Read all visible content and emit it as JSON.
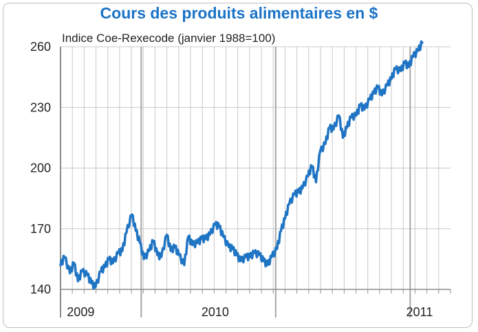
{
  "chart_data": {
    "type": "line",
    "title": "Cours des produits alimentaires en $",
    "subtitle": "Indice Coe-Rexecode (janvier 1988=100)",
    "xlabel": "",
    "ylabel": "",
    "ylim": [
      140,
      260
    ],
    "yticks": [
      140,
      170,
      200,
      230,
      260
    ],
    "xlim": [
      2008.4,
      2011.3
    ],
    "xticks": [
      {
        "label": "2009",
        "x": 2009.0
      },
      {
        "label": "2010",
        "x": 2010.0
      },
      {
        "label": "2011",
        "x": 2011.0
      }
    ],
    "grid": true,
    "colors": {
      "line": "#1f74c4",
      "title": "#1a73c7",
      "grid": "#c8c8c8"
    },
    "series": [
      {
        "name": "",
        "x": [
          2008.4,
          2008.43,
          2008.47,
          2008.5,
          2008.53,
          2008.56,
          2008.6,
          2008.63,
          2008.66,
          2008.7,
          2008.73,
          2008.76,
          2008.79,
          2008.83,
          2008.86,
          2008.89,
          2008.93,
          2008.96,
          2008.99,
          2009.02,
          2009.06,
          2009.09,
          2009.12,
          2009.15,
          2009.19,
          2009.22,
          2009.25,
          2009.28,
          2009.32,
          2009.35,
          2009.38,
          2009.42,
          2009.45,
          2009.48,
          2009.51,
          2009.55,
          2009.58,
          2009.61,
          2009.65,
          2009.68,
          2009.71,
          2009.74,
          2009.78,
          2009.81,
          2009.84,
          2009.88,
          2009.91,
          2009.94,
          2009.97,
          2010.01,
          2010.04,
          2010.07,
          2010.1,
          2010.14,
          2010.17,
          2010.2,
          2010.24,
          2010.27,
          2010.3,
          2010.33,
          2010.37,
          2010.4,
          2010.43,
          2010.47,
          2010.5,
          2010.53,
          2010.56,
          2010.6,
          2010.63,
          2010.66,
          2010.7,
          2010.73,
          2010.76,
          2010.79,
          2010.83,
          2010.86,
          2010.89,
          2010.93,
          2010.96,
          2010.99,
          2011.02,
          2011.06,
          2011.09
        ],
        "values": [
          152,
          156,
          148,
          153,
          144,
          149,
          147,
          143,
          141,
          149,
          151,
          155,
          153,
          158,
          159,
          168,
          177,
          169,
          163,
          155,
          159,
          164,
          157,
          156,
          167,
          159,
          161,
          157,
          152,
          166,
          162,
          163,
          165,
          165,
          167,
          172,
          171,
          166,
          161,
          160,
          157,
          154,
          156,
          156,
          158,
          157,
          154,
          152,
          156,
          160,
          169,
          175,
          182,
          187,
          188,
          190,
          196,
          201,
          193,
          208,
          212,
          220,
          219,
          226,
          215,
          220,
          225,
          226,
          231,
          229,
          234,
          237,
          240,
          236,
          241,
          244,
          249,
          248,
          252,
          250,
          255,
          258,
          262
        ]
      }
    ]
  }
}
